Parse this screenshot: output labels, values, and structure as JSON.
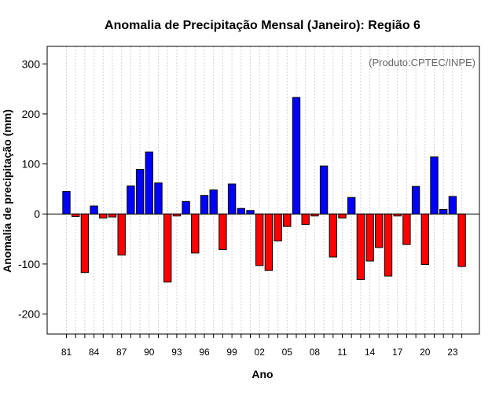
{
  "chart_data": {
    "type": "bar",
    "title": "Anomalia de Precipitação Mensal (Janeiro): Região 6",
    "xlabel": "Ano",
    "ylabel": "Anomalia de precipitação (mm)",
    "annotation": "(Produto:CPTEC/INPE)",
    "ylim": [
      -240,
      335
    ],
    "yticks": [
      -200,
      -100,
      0,
      100,
      200,
      300
    ],
    "xtick_labels": [
      "81",
      "84",
      "87",
      "90",
      "93",
      "96",
      "99",
      "02",
      "05",
      "08",
      "11",
      "14",
      "17",
      "20",
      "23"
    ],
    "years": [
      1981,
      1982,
      1983,
      1984,
      1985,
      1986,
      1987,
      1988,
      1989,
      1990,
      1991,
      1992,
      1993,
      1994,
      1995,
      1996,
      1997,
      1998,
      1999,
      2000,
      2001,
      2002,
      2003,
      2004,
      2005,
      2006,
      2007,
      2008,
      2009,
      2010,
      2011,
      2012,
      2013,
      2014,
      2015,
      2016,
      2017,
      2018,
      2019,
      2020,
      2021,
      2022,
      2023,
      2024
    ],
    "values": [
      45,
      -5,
      -117,
      16,
      -8,
      -6,
      -82,
      56,
      89,
      124,
      62,
      -136,
      -4,
      25,
      -78,
      37,
      48,
      -71,
      60,
      11,
      7,
      -103,
      -113,
      -54,
      -25,
      233,
      -21,
      -4,
      96,
      -86,
      -8,
      33,
      -131,
      -94,
      -67,
      -124,
      -4,
      -61,
      55,
      -101,
      114,
      9,
      35,
      -105
    ],
    "colors": {
      "positive": "#0000ff",
      "negative": "#ff0000",
      "grid": "#d3d3d3"
    },
    "grid": true
  }
}
